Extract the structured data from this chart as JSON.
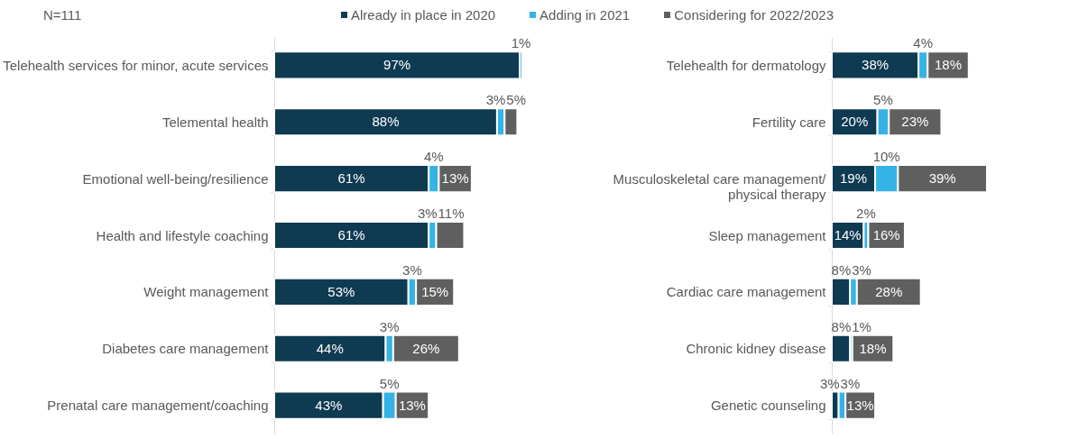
{
  "chart_data": [
    {
      "type": "bar",
      "orientation": "horizontal",
      "stacked": true,
      "legend": "top",
      "annotations": [
        "N=111"
      ],
      "categories": [
        "Telehealth services for minor, acute services",
        "Telemental health",
        "Emotional well-being/resilience",
        "Health and lifestyle coaching",
        "Weight management",
        "Diabetes care management",
        "Prenatal care management/coaching"
      ],
      "series": [
        {
          "name": "Already in place in 2020",
          "color": "#0e3a52",
          "values": [
            97,
            88,
            61,
            61,
            53,
            44,
            43
          ],
          "value_labels": [
            "97%",
            "88%",
            "61%",
            "61%",
            "53%",
            "44%",
            "43%"
          ]
        },
        {
          "name": "Adding in 2021",
          "color": "#36b3e6",
          "values": [
            1,
            3,
            4,
            3,
            3,
            3,
            5
          ],
          "value_labels": [
            "1%",
            "3%",
            "4%",
            "3%",
            "3%",
            "3%",
            "5%"
          ]
        },
        {
          "name": "Considering for 2022/2023",
          "color": "#5f5f5f",
          "values": [
            null,
            5,
            13,
            11,
            15,
            26,
            13
          ],
          "value_labels": [
            null,
            "5%",
            "13%",
            "11%",
            "15%",
            "26%",
            "13%"
          ]
        }
      ]
    },
    {
      "type": "bar",
      "orientation": "horizontal",
      "stacked": true,
      "legend": "top",
      "categories": [
        "Telehealth for dermatology",
        "Fertility care",
        "Musculoskeletal care management/ physical therapy",
        "Sleep management",
        "Cardiac care management",
        "Chronic kidney disease",
        "Genetic counseling"
      ],
      "series": [
        {
          "name": "Already in place in 2020",
          "color": "#0e3a52",
          "values": [
            38,
            20,
            19,
            14,
            8,
            8,
            3
          ],
          "value_labels": [
            "38%",
            "20%",
            "19%",
            "14%",
            "8%",
            "8%",
            "3%"
          ]
        },
        {
          "name": "Adding in 2021",
          "color": "#36b3e6",
          "values": [
            4,
            5,
            10,
            2,
            3,
            1,
            3
          ],
          "value_labels": [
            "4%",
            "5%",
            "10%",
            "2%",
            "3%",
            "1%",
            "3%"
          ]
        },
        {
          "name": "Considering for 2022/2023",
          "color": "#5f5f5f",
          "values": [
            18,
            23,
            39,
            16,
            28,
            18,
            13
          ],
          "value_labels": [
            "18%",
            "23%",
            "39%",
            "16%",
            "28%",
            "18%",
            "13%"
          ]
        }
      ]
    }
  ]
}
